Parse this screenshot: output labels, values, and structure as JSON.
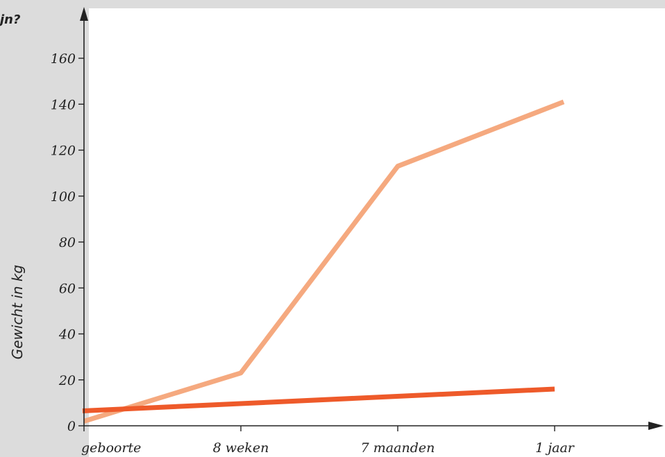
{
  "header": {
    "corner_text": "jn?"
  },
  "colors": {
    "panel_background": "#dcdcdc",
    "plot_background": "#ffffff",
    "axis": "#222222",
    "text": "#222222"
  },
  "chart_data": {
    "type": "line",
    "title": "",
    "xlabel": "",
    "ylabel": "Gewicht in kg",
    "categories": [
      "geboorte",
      "8 weken",
      "7 maanden",
      "1 jaar"
    ],
    "yticks": [
      0,
      20,
      40,
      60,
      80,
      100,
      120,
      140,
      160
    ],
    "ylim": [
      0,
      175
    ],
    "grid": false,
    "legend": "none",
    "series": [
      {
        "color": "#f5a97f",
        "values": [
          2,
          23,
          113,
          141
        ]
      },
      {
        "color": "#ee5a2a",
        "values": [
          6.5,
          null,
          null,
          16
        ]
      }
    ]
  }
}
